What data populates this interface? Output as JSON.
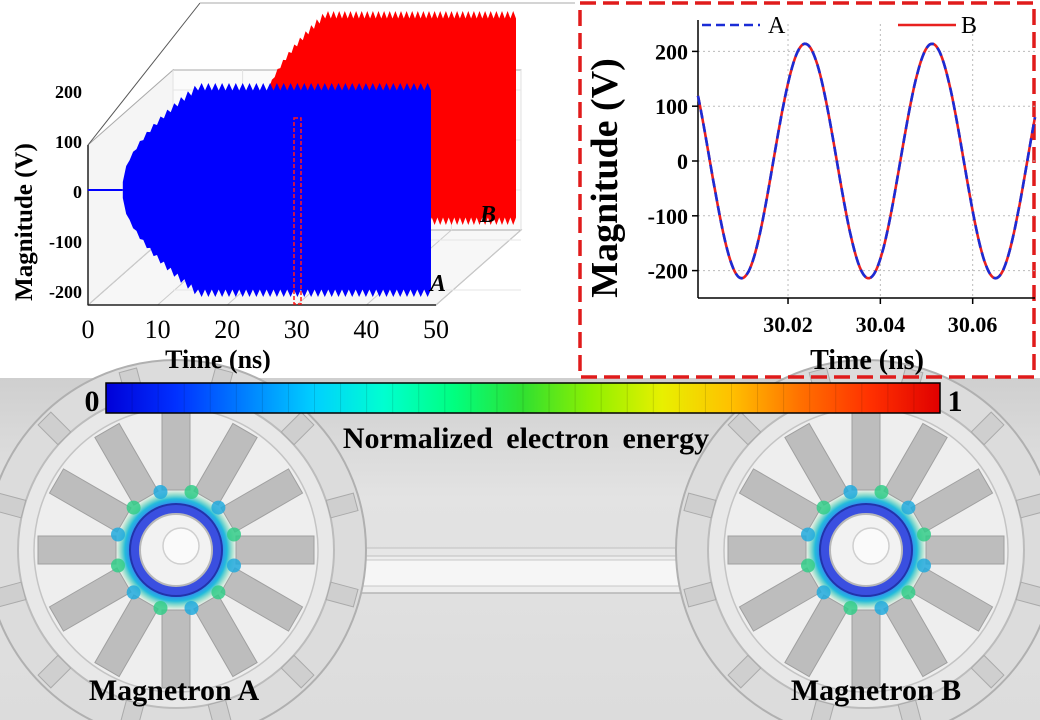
{
  "chart_data": [
    {
      "type": "line",
      "title": "",
      "view": "3d-waterfall",
      "xlabel": "Time (ns)",
      "ylabel": "Magnitude (V)",
      "xlim": [
        0,
        50
      ],
      "ylim": [
        -200,
        200
      ],
      "x_ticks": [
        "0",
        "10",
        "20",
        "30",
        "40",
        "50"
      ],
      "y_ticks": [
        "200",
        "100",
        "0",
        "-100",
        "-200"
      ],
      "series": [
        {
          "name": "A",
          "color": "#0000ff",
          "envelope_start_ns": 5,
          "steady_amplitude": 214
        },
        {
          "name": "B",
          "color": "#ff0000",
          "envelope_start_ns": 13,
          "steady_amplitude": 214
        }
      ],
      "annotations": [
        "zoom window ~30 ns (dashed red)"
      ]
    },
    {
      "type": "line",
      "title": "",
      "xlabel": "Time (ns)",
      "ylabel": "Magnitude (V)",
      "xlim": [
        30.0005,
        30.0735
      ],
      "ylim": [
        -250,
        250
      ],
      "x_ticks": [
        "30.02",
        "30.04",
        "30.06"
      ],
      "y_ticks": [
        "200",
        "100",
        "0",
        "-100",
        "-200"
      ],
      "legend": "top",
      "series": [
        {
          "name": "A",
          "color": "#1a2cd6",
          "style": "dashed",
          "amplitude": 214,
          "period_ns": 0.0275,
          "peak_at_ns": 30.0237
        },
        {
          "name": "B",
          "color": "#e8211f",
          "style": "solid",
          "amplitude": 214,
          "period_ns": 0.0275,
          "peak_at_ns": 30.0237
        }
      ]
    }
  ],
  "colorbar": {
    "min_label": "0",
    "max_label": "1",
    "title": "Normalized electron energy",
    "colors": [
      "#0000d8",
      "#0030ff",
      "#0080ff",
      "#00d0ff",
      "#00ffd0",
      "#00ff80",
      "#30e030",
      "#90f000",
      "#e8f000",
      "#ffc000",
      "#ff7000",
      "#ff3000",
      "#e00000"
    ]
  },
  "labels": {
    "magnetron_a": "Magnetron A",
    "magnetron_b": "Magnetron B",
    "series_a_3d": "A",
    "series_b_3d": "B"
  }
}
